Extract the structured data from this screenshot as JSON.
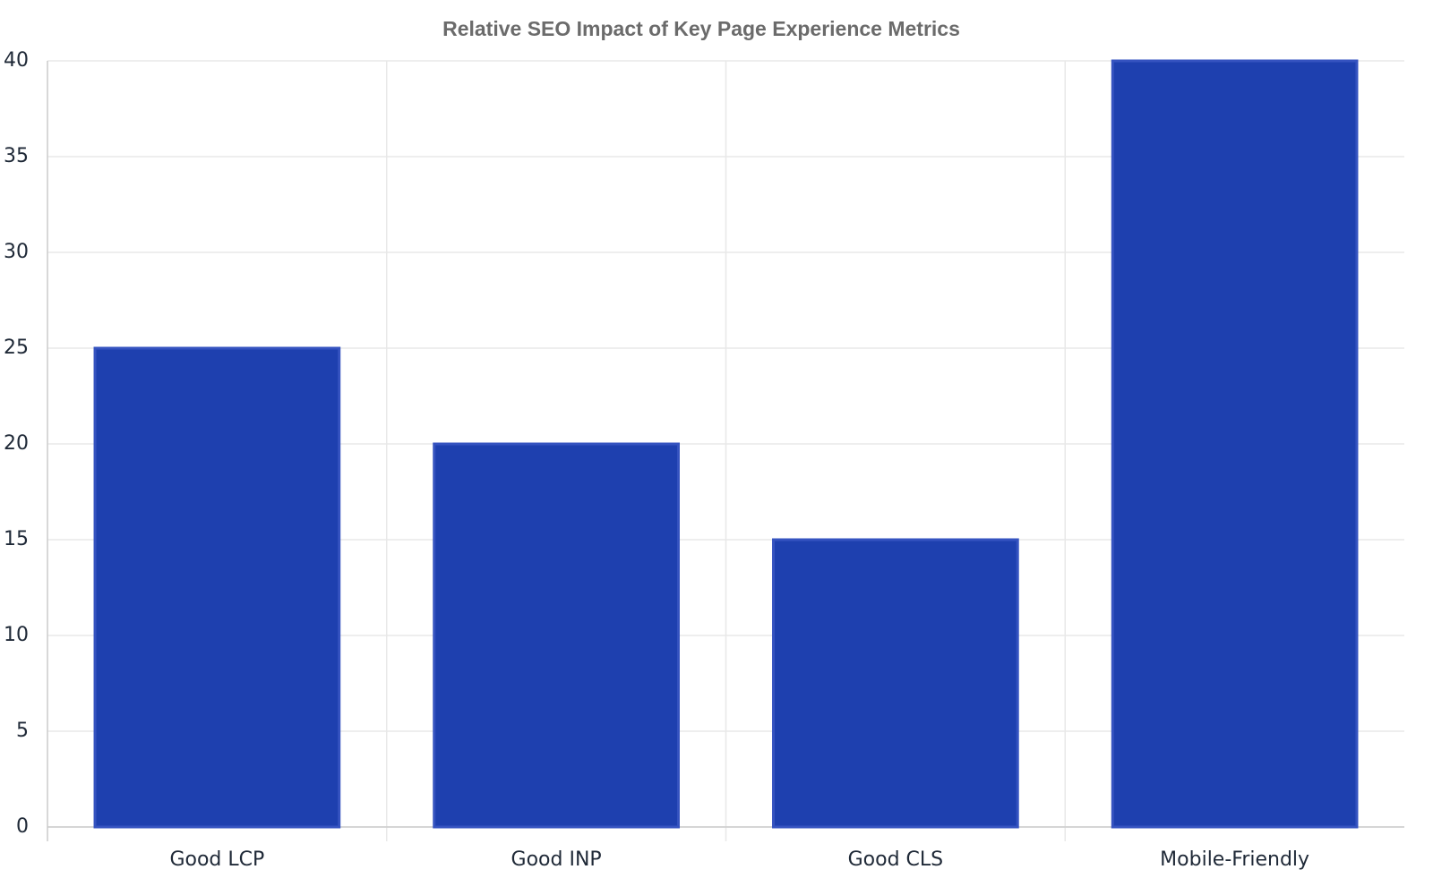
{
  "chart_data": {
    "type": "bar",
    "title": "Relative SEO Impact of Key Page Experience Metrics",
    "categories": [
      "Good LCP",
      "Good INP",
      "Good CLS",
      "Mobile-Friendly"
    ],
    "values": [
      25,
      20,
      15,
      40
    ],
    "color": "#1e40af",
    "ylim": [
      0,
      40
    ],
    "yticks": [
      0,
      5,
      10,
      15,
      20,
      25,
      30,
      35,
      40
    ],
    "grid": true
  }
}
